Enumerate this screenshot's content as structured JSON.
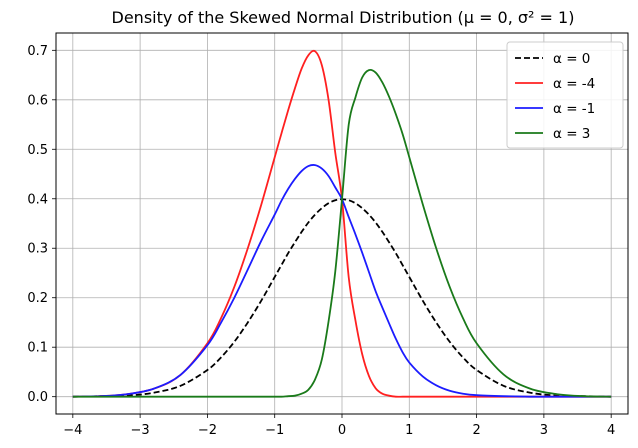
{
  "chart_data": {
    "type": "line",
    "title": "Density of the Skewed Normal Distribution (μ = 0, σ² = 1)",
    "xlabel": "",
    "ylabel": "",
    "xlim": [
      -4.25,
      4.25
    ],
    "ylim": [
      -0.035,
      0.735
    ],
    "xticks": [
      -4,
      -3,
      -2,
      -1,
      0,
      1,
      2,
      3,
      4
    ],
    "xtick_labels": [
      "−4",
      "−3",
      "−2",
      "−1",
      "0",
      "1",
      "2",
      "3",
      "4"
    ],
    "yticks": [
      0.0,
      0.1,
      0.2,
      0.3,
      0.4,
      0.5,
      0.6,
      0.7
    ],
    "ytick_labels": [
      "0.0",
      "0.1",
      "0.2",
      "0.3",
      "0.4",
      "0.5",
      "0.6",
      "0.7"
    ],
    "grid": true,
    "legend_position": "top-right",
    "x": [
      -4.0,
      -3.6,
      -3.2,
      -2.8,
      -2.4,
      -2.0,
      -1.8,
      -1.6,
      -1.4,
      -1.2,
      -1.0,
      -0.9,
      -0.8,
      -0.7,
      -0.6,
      -0.5,
      -0.4,
      -0.3,
      -0.2,
      -0.1,
      0.0,
      0.1,
      0.2,
      0.3,
      0.4,
      0.5,
      0.6,
      0.7,
      0.8,
      0.9,
      1.0,
      1.2,
      1.4,
      1.6,
      1.8,
      2.0,
      2.4,
      2.8,
      3.2,
      3.6,
      4.0
    ],
    "series": [
      {
        "name": "α = 0",
        "color": "#000000",
        "dashed": true,
        "values": [
          0.0,
          0.001,
          0.002,
          0.008,
          0.022,
          0.054,
          0.079,
          0.111,
          0.15,
          0.194,
          0.242,
          0.266,
          0.29,
          0.312,
          0.333,
          0.352,
          0.368,
          0.381,
          0.391,
          0.397,
          0.399,
          0.397,
          0.391,
          0.381,
          0.368,
          0.352,
          0.333,
          0.312,
          0.29,
          0.266,
          0.242,
          0.194,
          0.15,
          0.111,
          0.079,
          0.054,
          0.022,
          0.008,
          0.002,
          0.001,
          0.0
        ]
      },
      {
        "name": "α = -4",
        "color": "#ff2020",
        "dashed": false,
        "values": [
          0.0,
          0.001,
          0.005,
          0.016,
          0.044,
          0.108,
          0.158,
          0.222,
          0.3,
          0.388,
          0.484,
          0.532,
          0.579,
          0.623,
          0.663,
          0.69,
          0.698,
          0.67,
          0.6,
          0.493,
          0.399,
          0.241,
          0.154,
          0.086,
          0.042,
          0.017,
          0.006,
          0.002,
          0.0,
          0.0,
          0.0,
          0.0,
          0.0,
          0.0,
          0.0,
          0.0,
          0.0,
          0.0,
          0.0,
          0.0,
          0.0
        ]
      },
      {
        "name": "α = -1",
        "color": "#1c1cff",
        "dashed": false,
        "values": [
          0.0,
          0.001,
          0.005,
          0.016,
          0.044,
          0.104,
          0.149,
          0.2,
          0.257,
          0.315,
          0.368,
          0.396,
          0.42,
          0.44,
          0.456,
          0.466,
          0.468,
          0.461,
          0.446,
          0.423,
          0.399,
          0.363,
          0.328,
          0.291,
          0.252,
          0.213,
          0.18,
          0.148,
          0.117,
          0.09,
          0.069,
          0.041,
          0.023,
          0.012,
          0.006,
          0.003,
          0.001,
          0.0,
          0.0,
          0.0,
          0.0
        ]
      },
      {
        "name": "α = 3",
        "color": "#1a7a1a",
        "dashed": false,
        "values": [
          0.0,
          0.0,
          0.0,
          0.0,
          0.0,
          0.0,
          0.0,
          0.0,
          0.0,
          0.0,
          0.0,
          0.0,
          0.001,
          0.002,
          0.006,
          0.014,
          0.035,
          0.075,
          0.152,
          0.253,
          0.399,
          0.55,
          0.605,
          0.645,
          0.66,
          0.655,
          0.635,
          0.606,
          0.571,
          0.531,
          0.484,
          0.389,
          0.3,
          0.222,
          0.158,
          0.108,
          0.045,
          0.016,
          0.005,
          0.001,
          0.0
        ]
      }
    ]
  }
}
